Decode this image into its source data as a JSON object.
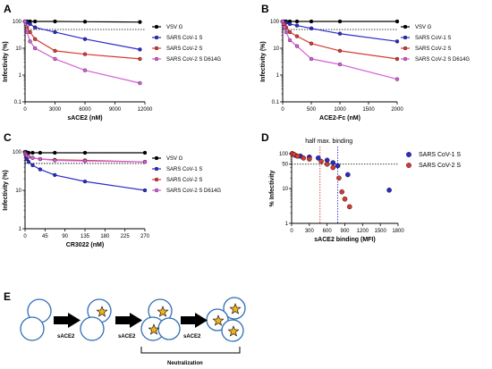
{
  "colors": {
    "vsv": "#000000",
    "cov1": "#2b2bc8",
    "cov2": "#d63a30",
    "d614g": "#d35fd6",
    "star": "#f2b21c",
    "circle": "#2f6fb5"
  },
  "chart_data": [
    {
      "panel": "A",
      "type": "line",
      "yscale": "log",
      "xlabel": "sACE2 (nM)",
      "ylabel": "Infectivity (%)",
      "xlim": [
        0,
        12000
      ],
      "ylim": [
        0.1,
        100
      ],
      "xticks": [
        "0",
        "3000",
        "6000",
        "9000",
        "12000"
      ],
      "yticks": [
        "0.1",
        "1",
        "10",
        "100"
      ],
      "reference_line": 50,
      "series": [
        {
          "name": "VSV G",
          "color": "#000000",
          "x": [
            0,
            200,
            500,
            1000,
            3000,
            6000,
            11500
          ],
          "y": [
            100,
            100,
            100,
            100,
            100,
            98,
            95
          ]
        },
        {
          "name": "SARS CoV-1 S",
          "color": "#2b2bc8",
          "x": [
            0,
            200,
            500,
            1000,
            3000,
            6000,
            11500
          ],
          "y": [
            100,
            90,
            80,
            60,
            40,
            22,
            9
          ]
        },
        {
          "name": "SARS CoV-2 S",
          "color": "#d63a30",
          "x": [
            0,
            200,
            500,
            1000,
            3000,
            6000,
            11500
          ],
          "y": [
            100,
            60,
            40,
            22,
            8,
            6,
            4
          ]
        },
        {
          "name": "SARS CoV-2 S D614G",
          "color": "#d35fd6",
          "x": [
            0,
            200,
            500,
            1000,
            3000,
            6000,
            11500
          ],
          "y": [
            100,
            40,
            18,
            10,
            4,
            1.5,
            0.5
          ]
        }
      ]
    },
    {
      "panel": "B",
      "type": "line",
      "yscale": "log",
      "xlabel": "ACE2-Fc (nM)",
      "ylabel": "Infectivity (%)",
      "xlim": [
        0,
        2000
      ],
      "ylim": [
        0.1,
        100
      ],
      "xticks": [
        "0",
        "500",
        "1000",
        "1500",
        "2000"
      ],
      "yticks": [
        "0.1",
        "1",
        "10",
        "100"
      ],
      "reference_line": 50,
      "series": [
        {
          "name": "VSV G",
          "color": "#000000",
          "x": [
            0,
            30,
            60,
            125,
            250,
            500,
            1000,
            2000
          ],
          "y": [
            100,
            100,
            100,
            100,
            100,
            100,
            100,
            100
          ]
        },
        {
          "name": "SARS CoV-1 S",
          "color": "#2b2bc8",
          "x": [
            0,
            30,
            60,
            125,
            250,
            500,
            1000,
            2000
          ],
          "y": [
            100,
            95,
            90,
            80,
            70,
            55,
            35,
            18
          ]
        },
        {
          "name": "SARS CoV-2 S",
          "color": "#d63a30",
          "x": [
            0,
            30,
            60,
            125,
            250,
            500,
            1000,
            2000
          ],
          "y": [
            100,
            80,
            60,
            40,
            28,
            15,
            8,
            4
          ]
        },
        {
          "name": "SARS CoV-2 S D614G",
          "color": "#d35fd6",
          "x": [
            0,
            30,
            60,
            125,
            250,
            500,
            1000,
            2000
          ],
          "y": [
            100,
            60,
            40,
            20,
            12,
            4,
            2.5,
            0.7
          ]
        }
      ]
    },
    {
      "panel": "C",
      "type": "line",
      "yscale": "log",
      "xlabel": "CR3022 (nM)",
      "ylabel": "Infectivity (%)",
      "xlim": [
        0,
        270
      ],
      "ylim": [
        1,
        100
      ],
      "xticks": [
        "0",
        "45",
        "90",
        "135",
        "180",
        "225",
        "270"
      ],
      "yticks": [
        "1",
        "10",
        "100"
      ],
      "reference_line": 50,
      "series": [
        {
          "name": "VSV G",
          "color": "#000000",
          "x": [
            0,
            2,
            4,
            8,
            17,
            34,
            67,
            135,
            270
          ],
          "y": [
            100,
            100,
            95,
            95,
            95,
            95,
            95,
            95,
            95
          ]
        },
        {
          "name": "SARS CoV-1 S",
          "color": "#2b2bc8",
          "x": [
            0,
            2,
            4,
            8,
            17,
            34,
            67,
            135,
            270
          ],
          "y": [
            100,
            80,
            65,
            55,
            45,
            35,
            25,
            17,
            10
          ]
        },
        {
          "name": "SARS CoV-2 S",
          "color": "#d63a30",
          "x": [
            0,
            2,
            4,
            8,
            17,
            34,
            67,
            135,
            270
          ],
          "y": [
            95,
            90,
            80,
            75,
            70,
            65,
            62,
            60,
            55
          ]
        },
        {
          "name": "SARS CoV-2 S D614G",
          "color": "#d35fd6",
          "x": [
            0,
            2,
            4,
            8,
            17,
            34,
            67,
            135,
            270
          ],
          "y": [
            90,
            85,
            80,
            75,
            70,
            65,
            60,
            58,
            55
          ]
        }
      ]
    },
    {
      "panel": "D",
      "type": "scatter",
      "yscale": "log",
      "xlabel": "sACE2 binding (MFI)",
      "ylabel": "% Infectivity",
      "xlim": [
        0,
        1800
      ],
      "ylim": [
        1,
        100
      ],
      "xticks": [
        "0",
        "300",
        "600",
        "900",
        "1200",
        "1500",
        "1800"
      ],
      "yticks": [
        "1",
        "10",
        "50",
        "100"
      ],
      "reference_line": 50,
      "annotation": "half max. binding",
      "half_max": {
        "SARS CoV-1 S": 780,
        "SARS CoV-2 S": 480
      },
      "series": [
        {
          "name": "SARS CoV-1 S",
          "color": "#2b2bc8",
          "x": [
            10,
            60,
            150,
            300,
            450,
            600,
            700,
            780,
            950,
            1650
          ],
          "y": [
            100,
            90,
            85,
            80,
            75,
            65,
            55,
            45,
            25,
            9
          ]
        },
        {
          "name": "SARS CoV-2 S",
          "color": "#d63a30",
          "x": [
            10,
            40,
            100,
            200,
            300,
            500,
            600,
            700,
            800,
            850,
            900,
            980
          ],
          "y": [
            100,
            95,
            85,
            75,
            70,
            60,
            50,
            40,
            20,
            8,
            5,
            3
          ]
        }
      ]
    }
  ],
  "diagram": {
    "panel": "E",
    "arrow_label": "sACE2",
    "bracket_label": "Neutralization"
  }
}
